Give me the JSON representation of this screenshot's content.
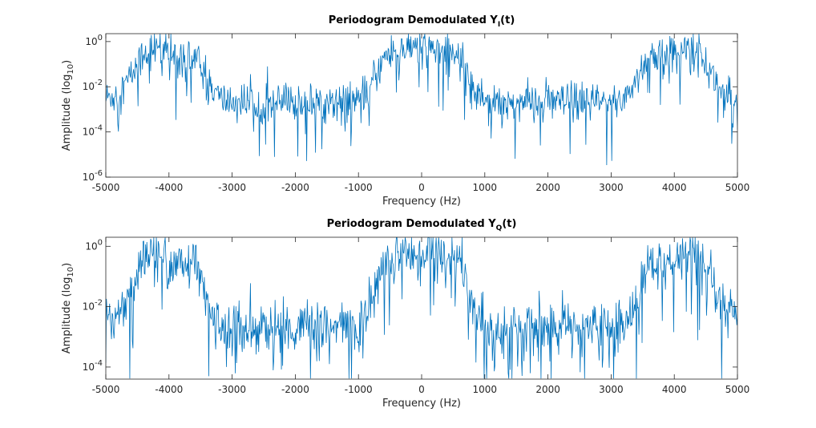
{
  "chart_data": [
    {
      "type": "line",
      "title": "Periodogram Demodulated Y",
      "title_subscript": "I",
      "title_suffix": "(t)",
      "xlabel": "Frequency (Hz)",
      "ylabel": "Amplitude (log",
      "ylabel_subscript": "10",
      "ylabel_suffix": ")",
      "y_scale": "log",
      "xlim": [
        -5000,
        5000
      ],
      "ylim_exp": [
        -6,
        0.35
      ],
      "x_ticks": [
        "-5000",
        "-4000",
        "-3000",
        "-2000",
        "-1000",
        "0",
        "1000",
        "2000",
        "3000",
        "4000",
        "5000"
      ],
      "y_ticks": [
        {
          "base": "10",
          "exp": "-6"
        },
        {
          "base": "10",
          "exp": "-4"
        },
        {
          "base": "10",
          "exp": "-2"
        },
        {
          "base": "10",
          "exp": "0"
        }
      ],
      "line_color": "#0072BD",
      "grid": false,
      "series": [
        {
          "x": [
            -5000,
            -4800,
            -4600,
            -4400,
            -4200,
            -4000,
            -3800,
            -3600,
            -3400,
            -3200,
            -3000,
            -2500,
            -2000,
            -1500,
            -1000,
            -800,
            -600,
            -400,
            -200,
            0,
            200,
            400,
            600,
            800,
            1000,
            1500,
            2000,
            2500,
            3000,
            3200,
            3400,
            3600,
            3800,
            4000,
            4200,
            4400,
            4600,
            4800,
            5000
          ],
          "y": [
            0.003,
            0.005,
            0.03,
            0.3,
            0.6,
            0.25,
            0.2,
            0.25,
            0.02,
            0.003,
            0.002,
            0.002,
            0.002,
            0.002,
            0.003,
            0.01,
            0.2,
            0.4,
            0.5,
            0.6,
            0.5,
            0.4,
            0.2,
            0.01,
            0.003,
            0.002,
            0.002,
            0.002,
            0.002,
            0.003,
            0.02,
            0.25,
            0.2,
            0.25,
            0.6,
            0.3,
            0.03,
            0.005,
            0.003
          ]
        }
      ]
    },
    {
      "type": "line",
      "title": "Periodogram Demodulated Y",
      "title_subscript": "Q",
      "title_suffix": "(t)",
      "xlabel": "Frequency (Hz)",
      "ylabel": "Amplitude (log",
      "ylabel_subscript": "10",
      "ylabel_suffix": ")",
      "y_scale": "log",
      "xlim": [
        -5000,
        5000
      ],
      "ylim_exp": [
        -4.4,
        0.3
      ],
      "x_ticks": [
        "-5000",
        "-4000",
        "-3000",
        "-2000",
        "-1000",
        "0",
        "1000",
        "2000",
        "3000",
        "4000",
        "5000"
      ],
      "y_ticks": [
        {
          "base": "10",
          "exp": "-4"
        },
        {
          "base": "10",
          "exp": "-2"
        },
        {
          "base": "10",
          "exp": "0"
        }
      ],
      "line_color": "#0072BD",
      "grid": false,
      "series": [
        {
          "x": [
            -5000,
            -4800,
            -4600,
            -4400,
            -4200,
            -4000,
            -3800,
            -3600,
            -3400,
            -3200,
            -3000,
            -2500,
            -2000,
            -1500,
            -1000,
            -800,
            -600,
            -400,
            -200,
            0,
            200,
            400,
            600,
            800,
            1000,
            1500,
            2000,
            2500,
            3000,
            3200,
            3400,
            3600,
            3800,
            4000,
            4200,
            4400,
            4600,
            4800,
            5000
          ],
          "y": [
            0.004,
            0.006,
            0.04,
            0.3,
            0.6,
            0.25,
            0.2,
            0.25,
            0.02,
            0.002,
            0.002,
            0.002,
            0.002,
            0.002,
            0.002,
            0.01,
            0.3,
            0.5,
            0.6,
            0.6,
            0.6,
            0.5,
            0.3,
            0.01,
            0.002,
            0.002,
            0.002,
            0.002,
            0.002,
            0.002,
            0.02,
            0.25,
            0.2,
            0.25,
            0.6,
            0.3,
            0.04,
            0.006,
            0.004
          ]
        }
      ]
    }
  ]
}
